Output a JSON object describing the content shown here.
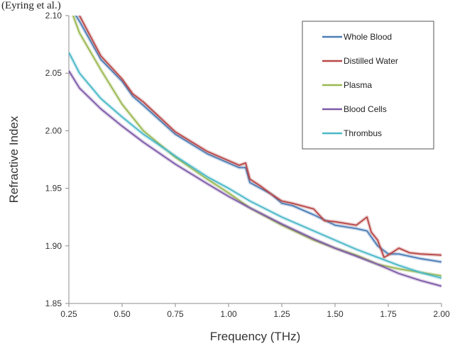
{
  "page": {
    "top_caption": "(Eyring et al.)"
  },
  "chart_data": {
    "type": "line",
    "title": "",
    "xlabel": "Frequency (THz)",
    "ylabel": "Refractive Index",
    "xlim": [
      0.25,
      2.0
    ],
    "ylim": [
      1.85,
      2.1
    ],
    "xticks": [
      0.25,
      0.5,
      0.75,
      1.0,
      1.25,
      1.5,
      1.75,
      2.0
    ],
    "xtick_labels": [
      "0.25",
      "0.50",
      "0.75",
      "1.00",
      "1.25",
      "1.50",
      "1.75",
      "2.00"
    ],
    "yticks": [
      1.85,
      1.9,
      1.95,
      2.0,
      2.05,
      2.1
    ],
    "ytick_labels": [
      "1.85",
      "1.90",
      "1.95",
      "2.00",
      "2.05",
      "2.10"
    ],
    "grid": false,
    "legend_position": "top-right",
    "series": [
      {
        "name": "Whole Blood",
        "color": "#4a7eb8",
        "x": [
          0.25,
          0.3,
          0.4,
          0.5,
          0.55,
          0.6,
          0.75,
          0.9,
          1.0,
          1.05,
          1.08,
          1.1,
          1.15,
          1.2,
          1.25,
          1.3,
          1.4,
          1.5,
          1.6,
          1.65,
          1.7,
          1.75,
          1.8,
          1.9,
          2.0
        ],
        "y": [
          2.11,
          2.095,
          2.062,
          2.043,
          2.03,
          2.022,
          1.997,
          1.98,
          1.972,
          1.968,
          1.968,
          1.955,
          1.95,
          1.945,
          1.937,
          1.935,
          1.927,
          1.918,
          1.915,
          1.913,
          1.9,
          1.893,
          1.893,
          1.889,
          1.886
        ]
      },
      {
        "name": "Distilled Water",
        "color": "#b84747",
        "x": [
          0.25,
          0.3,
          0.4,
          0.5,
          0.55,
          0.6,
          0.75,
          0.9,
          1.0,
          1.05,
          1.08,
          1.1,
          1.15,
          1.2,
          1.25,
          1.3,
          1.4,
          1.45,
          1.5,
          1.6,
          1.65,
          1.67,
          1.7,
          1.73,
          1.75,
          1.8,
          1.85,
          1.9,
          2.0
        ],
        "y": [
          2.115,
          2.1,
          2.065,
          2.045,
          2.032,
          2.025,
          1.999,
          1.982,
          1.974,
          1.97,
          1.972,
          1.958,
          1.952,
          1.945,
          1.939,
          1.937,
          1.932,
          1.922,
          1.921,
          1.918,
          1.925,
          1.912,
          1.905,
          1.89,
          1.892,
          1.898,
          1.894,
          1.893,
          1.892
        ]
      },
      {
        "name": "Plasma",
        "color": "#9ab850",
        "x": [
          0.25,
          0.3,
          0.4,
          0.5,
          0.6,
          0.75,
          0.9,
          1.0,
          1.1,
          1.25,
          1.4,
          1.5,
          1.6,
          1.7,
          1.8,
          1.9,
          2.0
        ],
        "y": [
          2.11,
          2.085,
          2.053,
          2.023,
          2.0,
          1.977,
          1.958,
          1.946,
          1.933,
          1.918,
          1.905,
          1.898,
          1.892,
          1.884,
          1.88,
          1.877,
          1.874
        ]
      },
      {
        "name": "Blood Cells",
        "color": "#7e5aa8",
        "x": [
          0.25,
          0.3,
          0.4,
          0.5,
          0.6,
          0.75,
          0.9,
          1.0,
          1.1,
          1.25,
          1.4,
          1.5,
          1.6,
          1.7,
          1.8,
          1.9,
          2.0
        ],
        "y": [
          2.052,
          2.037,
          2.019,
          2.004,
          1.99,
          1.971,
          1.954,
          1.943,
          1.933,
          1.919,
          1.906,
          1.898,
          1.891,
          1.884,
          1.876,
          1.87,
          1.865
        ]
      },
      {
        "name": "Thrombus",
        "color": "#4ab8c8",
        "x": [
          0.25,
          0.3,
          0.4,
          0.5,
          0.6,
          0.75,
          0.9,
          1.0,
          1.1,
          1.25,
          1.4,
          1.5,
          1.6,
          1.7,
          1.8,
          1.9,
          2.0
        ],
        "y": [
          2.068,
          2.05,
          2.028,
          2.012,
          1.997,
          1.978,
          1.96,
          1.95,
          1.939,
          1.925,
          1.913,
          1.905,
          1.897,
          1.89,
          1.883,
          1.877,
          1.872
        ]
      }
    ]
  }
}
